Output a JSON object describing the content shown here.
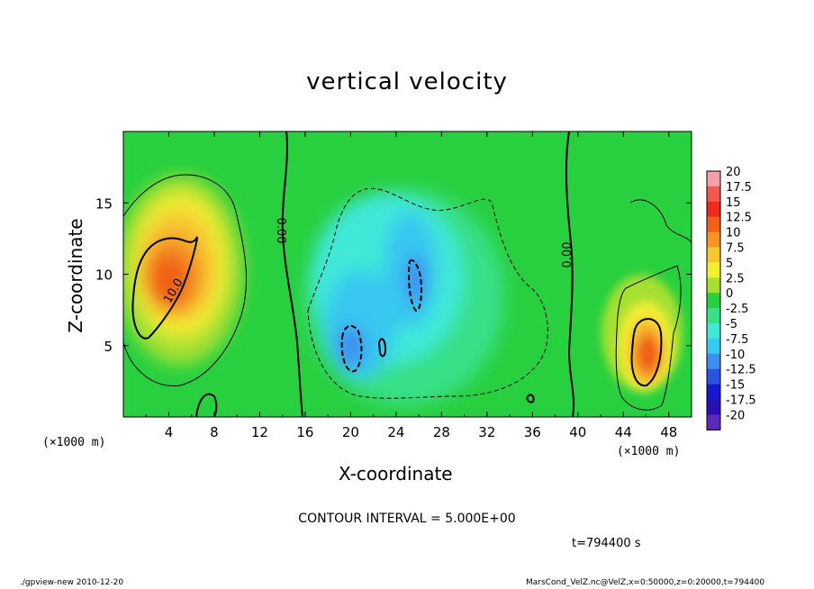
{
  "chart_data": {
    "type": "heatmap",
    "title": "vertical velocity",
    "xlabel": "X-coordinate",
    "ylabel": "Z-coordinate",
    "x_unit": "(×1000 m)",
    "xlim": [
      0,
      50
    ],
    "ylim": [
      0,
      20
    ],
    "x_ticks": [
      "4",
      "8",
      "12",
      "16",
      "20",
      "24",
      "28",
      "32",
      "36",
      "40",
      "44",
      "48"
    ],
    "y_ticks": [
      "5",
      "10",
      "15"
    ],
    "colorbar": {
      "labels": [
        "20",
        "17.5",
        "15",
        "12.5",
        "10",
        "7.5",
        "5",
        "2.5",
        "0",
        "-2.5",
        "-5",
        "-7.5",
        "-10",
        "-12.5",
        "-15",
        "-17.5",
        "-20"
      ],
      "colors": [
        "#f4a0a8",
        "#f25a50",
        "#ee2c1c",
        "#f06018",
        "#f49426",
        "#f6c632",
        "#f2ee32",
        "#a6e030",
        "#28d040",
        "#38e088",
        "#40e8d8",
        "#38c8f0",
        "#3e8ef0",
        "#2a54e0",
        "#1818d0",
        "#2a10b4",
        "#5e28b8"
      ]
    },
    "contour_labels": [
      "0.00",
      "0.00",
      "10.0"
    ],
    "contour_interval": "CONTOUR INTERVAL = 5.000E+00",
    "time_label": "t=794400 s",
    "features": [
      {
        "kind": "updraft",
        "x": 4.5,
        "z": 10.5,
        "w": 12.5
      },
      {
        "kind": "updraft",
        "x": 46,
        "z": 5.3,
        "w": 12.5
      },
      {
        "kind": "downdraft",
        "x": 20,
        "z": 5.0,
        "w": -12.5
      },
      {
        "kind": "downdraft",
        "x": 25.5,
        "z": 10.0,
        "w": -10
      },
      {
        "kind": "zero-line",
        "x": 14.5
      },
      {
        "kind": "zero-line",
        "x": 39.5
      }
    ]
  },
  "footer": {
    "left": "./gpview-new 2010-12-20",
    "right": "MarsCond_VelZ.nc@VelZ,x=0:50000,z=0:20000,t=794400"
  }
}
